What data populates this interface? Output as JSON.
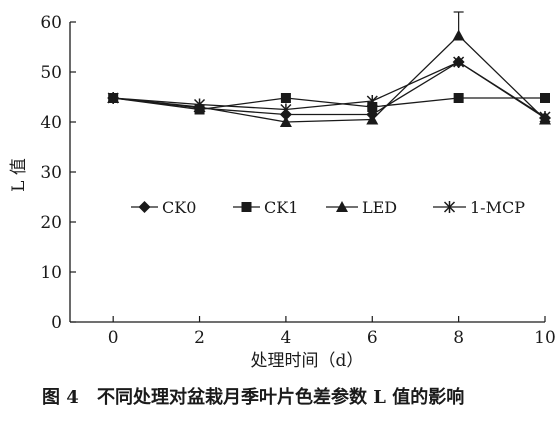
{
  "chart_data": {
    "type": "line",
    "xlabel": "处理时间（d）",
    "ylabel": "L 值",
    "x": [
      0,
      2,
      4,
      6,
      8,
      10
    ],
    "xlim": [
      -1,
      10
    ],
    "ylim": [
      0,
      60
    ],
    "xticks": [
      "0",
      "2",
      "4",
      "6",
      "8",
      "10"
    ],
    "yticks": [
      "0",
      "10",
      "20",
      "30",
      "40",
      "50",
      "60"
    ],
    "grid": false,
    "legend_position": "middle",
    "series": [
      {
        "name": "CK0",
        "marker": "diamond",
        "values": [
          44.8,
          42.8,
          41.5,
          41.5,
          52.0,
          40.8
        ]
      },
      {
        "name": "CK1",
        "marker": "square",
        "values": [
          44.8,
          42.5,
          44.8,
          43.0,
          44.8,
          44.8
        ]
      },
      {
        "name": "LED",
        "marker": "triangle",
        "values": [
          44.8,
          43.0,
          40.0,
          40.5,
          57.3,
          40.5
        ]
      },
      {
        "name": "1-MCP",
        "marker": "x-star",
        "values": [
          44.8,
          43.5,
          42.5,
          44.2,
          52.0,
          41.0
        ]
      }
    ],
    "error_bars": [
      {
        "series": "LED",
        "x": 8,
        "plus": 4.7,
        "minus": 0
      }
    ]
  },
  "caption": {
    "figure_label": "图 4",
    "text": "不同处理对盆栽月季叶片色差参数 L 值的影响"
  },
  "colors": {
    "line": "#1a1a1a",
    "background": "#ffffff"
  }
}
